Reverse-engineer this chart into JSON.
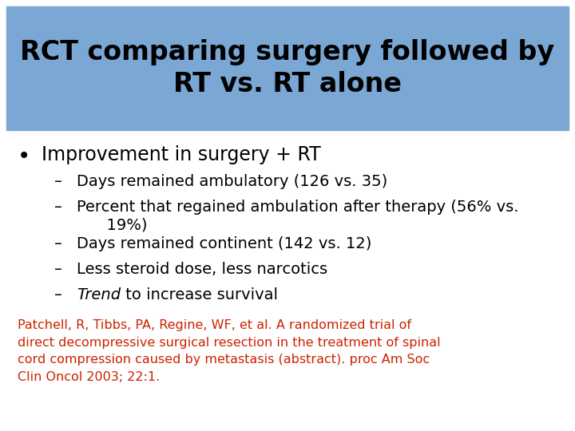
{
  "title_line1": "RCT comparing surgery followed by",
  "title_line2": "RT vs. RT alone",
  "title_bg_color": "#7ba7d4",
  "title_text_color": "#000000",
  "title_fontsize": 24,
  "bullet_text": "Improvement in surgery + RT",
  "bullet_fontsize": 17,
  "sub_bullet_items": [
    {
      "text": "Days remained ambulatory (126 vs. 35)",
      "italic_prefix": null
    },
    {
      "text": "Percent that regained ambulation after therapy (56% vs.\n      19%)",
      "italic_prefix": null
    },
    {
      "text": "Days remained continent (142 vs. 12)",
      "italic_prefix": null
    },
    {
      "text": "Less steroid dose, less narcotics",
      "italic_prefix": null
    },
    {
      "text": " to increase survival",
      "italic_prefix": "Trend"
    }
  ],
  "sub_fontsize": 14,
  "reference_text": "Patchell, R, Tibbs, PA, Regine, WF, et al. A randomized trial of\ndirect decompressive surgical resection in the treatment of spinal\ncord compression caused by metastasis (abstract). proc Am Soc\nClin Oncol 2003; 22:1.",
  "reference_color": "#cc2200",
  "reference_fontsize": 11.5,
  "bg_color": "#ffffff"
}
